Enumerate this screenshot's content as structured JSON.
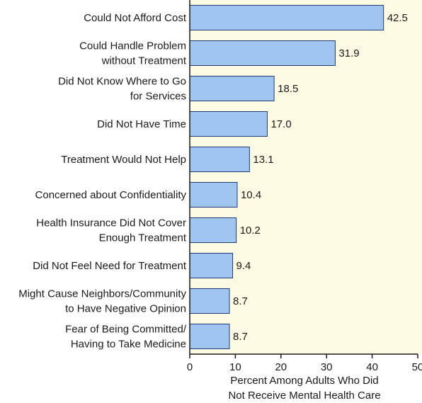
{
  "chart_data": {
    "type": "bar",
    "orientation": "horizontal",
    "categories": [
      [
        "Could Not Afford Cost"
      ],
      [
        "Could Handle Problem",
        "without Treatment"
      ],
      [
        "Did Not Know Where to Go",
        "for Services"
      ],
      [
        "Did Not Have Time"
      ],
      [
        "Treatment Would Not Help"
      ],
      [
        "Concerned about Confidentiality"
      ],
      [
        "Health Insurance Did Not Cover",
        "Enough Treatment"
      ],
      [
        "Did Not Feel Need for Treatment"
      ],
      [
        "Might Cause Neighbors/Community",
        "to Have Negative Opinion"
      ],
      [
        "Fear of Being Committed/",
        "Having to Take Medicine"
      ]
    ],
    "values": [
      42.5,
      31.9,
      18.5,
      17.0,
      13.1,
      10.4,
      10.2,
      9.4,
      8.7,
      8.7
    ],
    "value_labels": [
      "42.5",
      "31.9",
      "18.5",
      "17.0",
      "13.1",
      "10.4",
      "10.2",
      "9.4",
      "8.7",
      "8.7"
    ],
    "xlim": [
      0,
      50
    ],
    "xticks": [
      0,
      10,
      20,
      30,
      40,
      50
    ],
    "xlabel": [
      "Percent Among Adults Who Did",
      "Not Receive Mental Health Care"
    ],
    "grid": false,
    "colors": {
      "bar_fill": "#9fc5f0",
      "bar_stroke": "#1f3e78",
      "plot_background": "#fdfbe3",
      "axis": "#1a1a1a"
    }
  }
}
